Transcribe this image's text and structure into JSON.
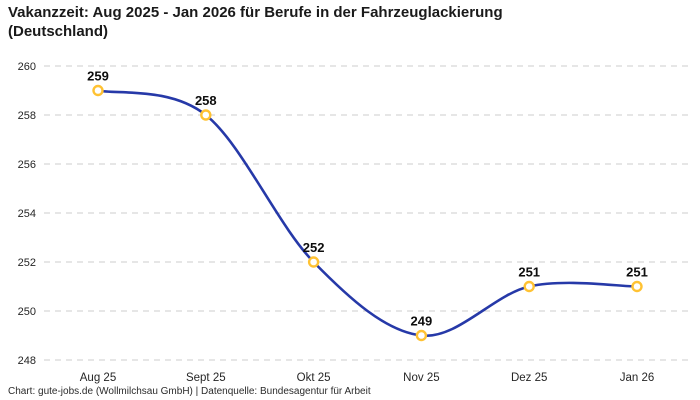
{
  "header": {
    "title": "Vakanzzeit: Aug 2025 - Jan 2026 für Berufe in der Fahrzeuglackierung\n(Deutschland)"
  },
  "footer": {
    "credit": "Chart: gute-jobs.de (Wollmilchsau GmbH) | Datenquelle: Bundesagentur für Arbeit"
  },
  "chart_data": {
    "type": "line",
    "title": "Vakanzzeit: Aug 2025 - Jan 2026 für Berufe in der Fahrzeuglackierung (Deutschland)",
    "categories": [
      "Aug 25",
      "Sept 25",
      "Okt 25",
      "Nov 25",
      "Dez 25",
      "Jan 26"
    ],
    "series": [
      {
        "name": "Vakanzzeit",
        "values": [
          259,
          258,
          252,
          249,
          251,
          251
        ]
      }
    ],
    "xlabel": "",
    "ylabel": "",
    "ylim": [
      248,
      260
    ],
    "yticks": [
      248,
      250,
      252,
      254,
      256,
      258,
      260
    ],
    "grid": "horizontal-dashed",
    "legend": "none",
    "data_labels": true,
    "colors": {
      "line": "#2639a8",
      "marker_ring": "#ffc233",
      "marker_fill": "#ffffff",
      "gridline": "#cccccc",
      "tick_text": "#262626",
      "data_label_text": "#0d0d0d"
    }
  }
}
